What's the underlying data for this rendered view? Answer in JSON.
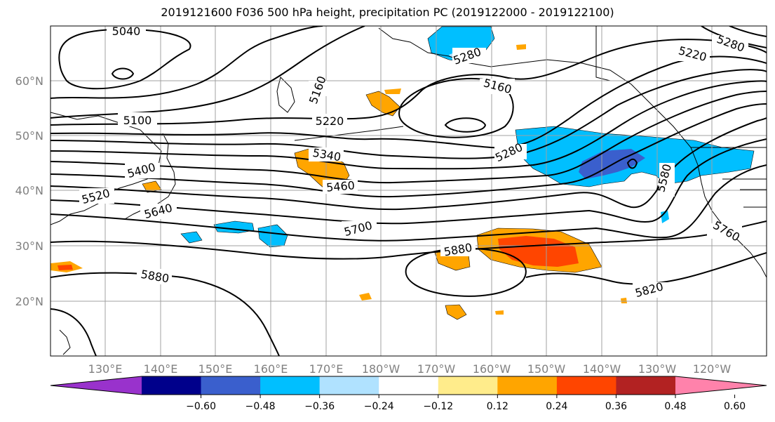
{
  "title": "2019121600 F036 500 hPa height, precipitation PC (2019122000 - 2019122100)",
  "lat_labels": [
    "60°N",
    "50°N",
    "40°N",
    "30°N",
    "20°N"
  ],
  "lon_labels": [
    "130°E",
    "140°E",
    "150°E",
    "160°E",
    "170°E",
    "180°W",
    "170°W",
    "160°W",
    "150°W",
    "140°W",
    "130°W",
    "120°W"
  ],
  "colorbar": {
    "ticks": [
      "−0.60",
      "−0.48",
      "−0.36",
      "−0.24",
      "−0.12",
      "0.12",
      "0.24",
      "0.36",
      "0.48",
      "0.60"
    ],
    "colors": [
      "#9932cc",
      "#00008b",
      "#3a5fcd",
      "#00bfff",
      "#b0e2ff",
      "#ffffff",
      "#ffec8b",
      "#ffa500",
      "#ff4500",
      "#b22222",
      "#ff82ab"
    ]
  },
  "contour_labels": [
    "5040",
    "5100",
    "5160",
    "5220",
    "5280",
    "5340",
    "5400",
    "5460",
    "5520",
    "5580",
    "5640",
    "5700",
    "5760",
    "5820",
    "5880",
    "5880",
    "5220",
    "5160",
    "5280",
    "5280"
  ],
  "colors": {
    "precip_pos": "#ffa500",
    "precip_strong": "#ff4500",
    "precip_neg": "#00bfff",
    "precip_neg_strong": "#3a5fcd",
    "contour": "#000000",
    "grid": "#a0a0a0"
  }
}
